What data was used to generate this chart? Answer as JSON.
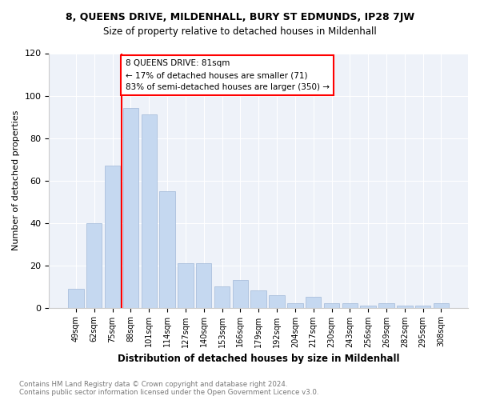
{
  "title1": "8, QUEENS DRIVE, MILDENHALL, BURY ST EDMUNDS, IP28 7JW",
  "title2": "Size of property relative to detached houses in Mildenhall",
  "xlabel": "Distribution of detached houses by size in Mildenhall",
  "ylabel": "Number of detached properties",
  "categories": [
    "49sqm",
    "62sqm",
    "75sqm",
    "88sqm",
    "101sqm",
    "114sqm",
    "127sqm",
    "140sqm",
    "153sqm",
    "166sqm",
    "179sqm",
    "192sqm",
    "204sqm",
    "217sqm",
    "230sqm",
    "243sqm",
    "256sqm",
    "269sqm",
    "282sqm",
    "295sqm",
    "308sqm"
  ],
  "values": [
    9,
    40,
    67,
    94,
    91,
    55,
    21,
    21,
    10,
    13,
    8,
    6,
    2,
    5,
    2,
    2,
    1,
    2,
    1,
    1,
    2
  ],
  "bar_color": "#c5d8f0",
  "bar_edge_color": "#a0b8d8",
  "annotation_lines": [
    "8 QUEENS DRIVE: 81sqm",
    "← 17% of detached houses are smaller (71)",
    "83% of semi-detached houses are larger (350) →"
  ],
  "ylim": [
    0,
    120
  ],
  "yticks": [
    0,
    20,
    40,
    60,
    80,
    100,
    120
  ],
  "footnote": "Contains HM Land Registry data © Crown copyright and database right 2024.\nContains public sector information licensed under the Open Government Licence v3.0.",
  "background_color": "#eef2f9"
}
